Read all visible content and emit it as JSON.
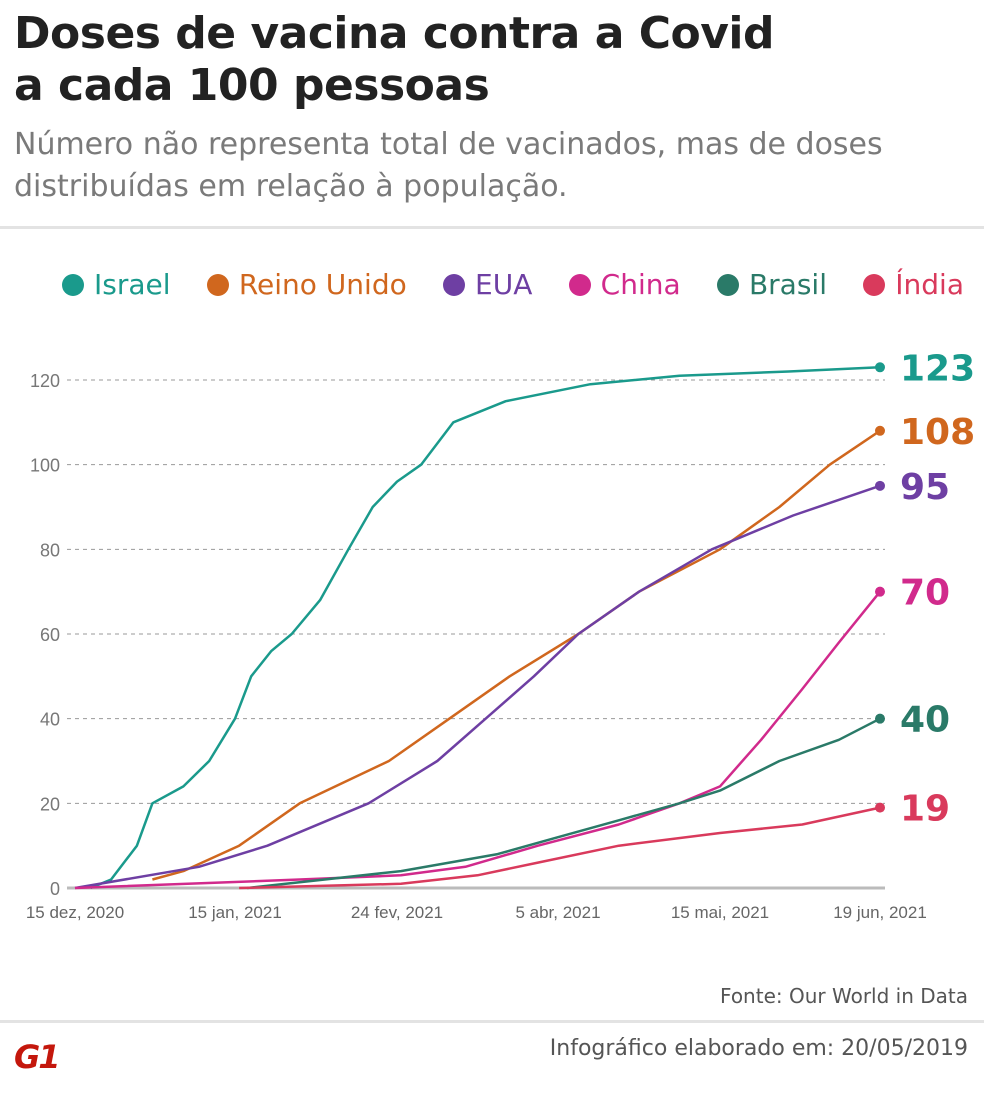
{
  "header": {
    "title_line1": "Doses de vacina contra a Covid",
    "title_line2": "a cada 100 pessoas",
    "subtitle": "Número não representa total de vacinados, mas de doses distribuídas em relação à população."
  },
  "chart_data": {
    "type": "line",
    "title": "Doses de vacina contra a Covid a cada 100 pessoas",
    "ylim": [
      0,
      120
    ],
    "y_ticks": [
      "0",
      "20",
      "40",
      "60",
      "80",
      "100",
      "120"
    ],
    "x_ticks": [
      {
        "date": "2020-12-15",
        "label": "15 dez, 2020"
      },
      {
        "date": "2021-01-15",
        "label": "15 jan, 2021"
      },
      {
        "date": "2021-02-24",
        "label": "24 fev, 2021"
      },
      {
        "date": "2021-04-05",
        "label": "5 abr, 2021"
      },
      {
        "date": "2021-05-15",
        "label": "15 mai, 2021"
      },
      {
        "date": "2021-06-19",
        "label": "19 jun, 2021"
      }
    ],
    "grid": "horizontal dashed",
    "legend": "top",
    "series": [
      {
        "name": "Israel",
        "color": "#1a9a8c",
        "end_label": "123",
        "points": [
          [
            "2020-12-18",
            0
          ],
          [
            "2020-12-22",
            2
          ],
          [
            "2020-12-27",
            10
          ],
          [
            "2020-12-30",
            20
          ],
          [
            "2021-01-05",
            24
          ],
          [
            "2021-01-10",
            30
          ],
          [
            "2021-01-15",
            40
          ],
          [
            "2021-01-19",
            50
          ],
          [
            "2021-01-24",
            56
          ],
          [
            "2021-01-29",
            60
          ],
          [
            "2021-02-05",
            68
          ],
          [
            "2021-02-12",
            80
          ],
          [
            "2021-02-18",
            90
          ],
          [
            "2021-02-24",
            96
          ],
          [
            "2021-03-02",
            100
          ],
          [
            "2021-03-10",
            110
          ],
          [
            "2021-03-23",
            115
          ],
          [
            "2021-04-13",
            119
          ],
          [
            "2021-05-05",
            121
          ],
          [
            "2021-05-30",
            122
          ],
          [
            "2021-06-19",
            123
          ]
        ]
      },
      {
        "name": "Reino Unido",
        "color": "#d0671e",
        "end_label": "108",
        "points": [
          [
            "2020-12-30",
            2
          ],
          [
            "2021-01-05",
            4
          ],
          [
            "2021-01-16",
            10
          ],
          [
            "2021-01-31",
            20
          ],
          [
            "2021-02-22",
            30
          ],
          [
            "2021-03-09",
            40
          ],
          [
            "2021-03-24",
            50
          ],
          [
            "2021-04-10",
            60
          ],
          [
            "2021-04-25",
            70
          ],
          [
            "2021-05-15",
            80
          ],
          [
            "2021-05-28",
            90
          ],
          [
            "2021-06-08",
            100
          ],
          [
            "2021-06-19",
            108
          ]
        ]
      },
      {
        "name": "EUA",
        "color": "#6e3fa3",
        "end_label": "95",
        "points": [
          [
            "2020-12-15",
            0
          ],
          [
            "2021-01-08",
            5
          ],
          [
            "2021-01-23",
            10
          ],
          [
            "2021-02-17",
            20
          ],
          [
            "2021-03-06",
            30
          ],
          [
            "2021-03-18",
            40
          ],
          [
            "2021-03-30",
            50
          ],
          [
            "2021-04-10",
            60
          ],
          [
            "2021-04-25",
            70
          ],
          [
            "2021-05-13",
            80
          ],
          [
            "2021-05-31",
            88
          ],
          [
            "2021-06-19",
            95
          ]
        ]
      },
      {
        "name": "China",
        "color": "#d12a8c",
        "end_label": "70",
        "points": [
          [
            "2020-12-15",
            0
          ],
          [
            "2021-01-31",
            2
          ],
          [
            "2021-02-25",
            3
          ],
          [
            "2021-03-13",
            5
          ],
          [
            "2021-03-31",
            10
          ],
          [
            "2021-04-20",
            15
          ],
          [
            "2021-05-05",
            20
          ],
          [
            "2021-05-15",
            24
          ],
          [
            "2021-05-24",
            35
          ],
          [
            "2021-06-02",
            47
          ],
          [
            "2021-06-10",
            58
          ],
          [
            "2021-06-19",
            70
          ]
        ]
      },
      {
        "name": "Brasil",
        "color": "#2a7a68",
        "end_label": "40",
        "points": [
          [
            "2021-01-18",
            0
          ],
          [
            "2021-02-25",
            4
          ],
          [
            "2021-03-21",
            8
          ],
          [
            "2021-04-05",
            12
          ],
          [
            "2021-04-20",
            16
          ],
          [
            "2021-05-05",
            20
          ],
          [
            "2021-05-15",
            23
          ],
          [
            "2021-05-28",
            30
          ],
          [
            "2021-06-10",
            35
          ],
          [
            "2021-06-19",
            40
          ]
        ]
      },
      {
        "name": "Índia",
        "color": "#d93a5c",
        "end_label": "19",
        "points": [
          [
            "2021-01-16",
            0
          ],
          [
            "2021-02-25",
            1
          ],
          [
            "2021-03-16",
            3
          ],
          [
            "2021-03-31",
            6
          ],
          [
            "2021-04-20",
            10
          ],
          [
            "2021-05-15",
            13
          ],
          [
            "2021-06-02",
            15
          ],
          [
            "2021-06-19",
            19
          ]
        ]
      }
    ]
  },
  "footer": {
    "source": "Fonte: Our World in Data",
    "credit": "Infográfico elaborado em: 20/05/2019",
    "logo": "G1"
  }
}
